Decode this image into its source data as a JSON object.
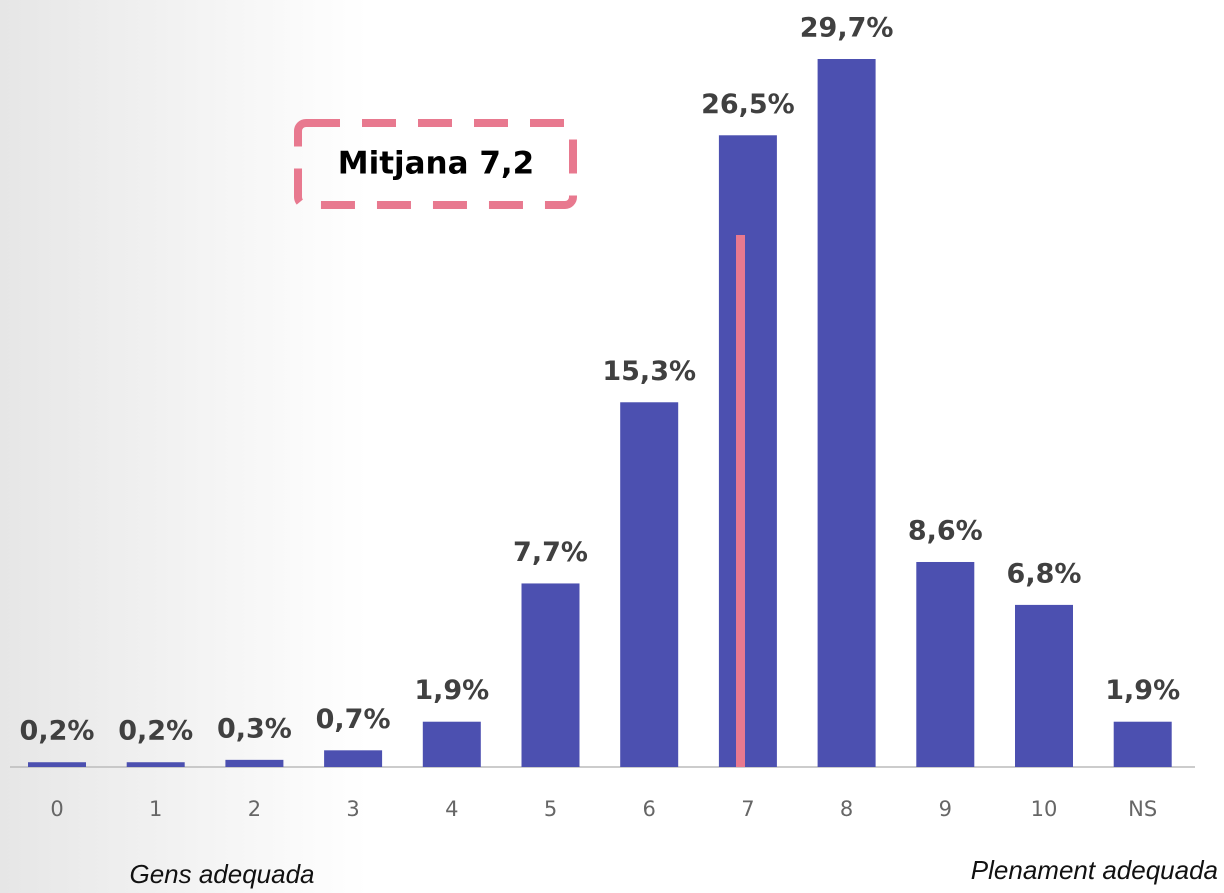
{
  "chart_data": {
    "type": "bar",
    "categories": [
      "0",
      "1",
      "2",
      "3",
      "4",
      "5",
      "6",
      "7",
      "8",
      "9",
      "10",
      "NS"
    ],
    "values": [
      0.2,
      0.2,
      0.3,
      0.7,
      1.9,
      7.7,
      15.3,
      26.5,
      29.7,
      8.6,
      6.8,
      1.9
    ],
    "value_labels": [
      "0,2%",
      "0,2%",
      "0,3%",
      "0,7%",
      "1,9%",
      "7,7%",
      "15,3%",
      "26,5%",
      "29,7%",
      "8,6%",
      "6,8%",
      "1,9%"
    ],
    "color": "#4c50b0",
    "annotation": "Mitjana 7,2",
    "x_label_left": "Gens adequada",
    "x_label_right": "Plenament adequada"
  }
}
